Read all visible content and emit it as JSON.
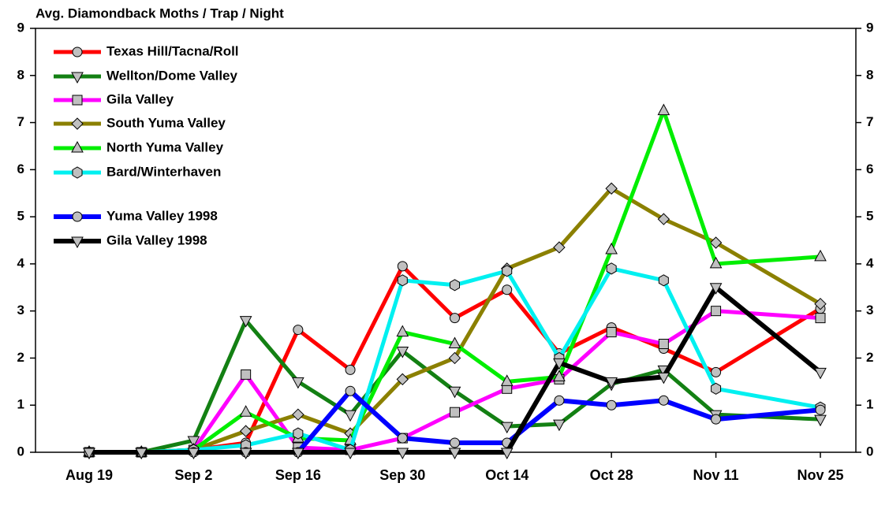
{
  "chart_data": {
    "type": "line",
    "title": "Avg. Diamondback Moths  / Trap / Night",
    "x": [
      0,
      7,
      14,
      21,
      28,
      35,
      42,
      49,
      56,
      63,
      70,
      77,
      84,
      98
    ],
    "xlim": [
      0,
      98
    ],
    "xticks": [
      {
        "value": 0,
        "label": "Aug 19"
      },
      {
        "value": 14,
        "label": "Sep 2"
      },
      {
        "value": 28,
        "label": "Sep 16"
      },
      {
        "value": 42,
        "label": "Sep 30"
      },
      {
        "value": 56,
        "label": "Oct 14"
      },
      {
        "value": 70,
        "label": "Oct 28"
      },
      {
        "value": 84,
        "label": "Nov 11"
      },
      {
        "value": 98,
        "label": "Nov 25"
      }
    ],
    "ylim": [
      0,
      9
    ],
    "yticks": [
      0,
      1,
      2,
      3,
      4,
      5,
      6,
      7,
      8,
      9
    ],
    "legend": "top-left",
    "series": [
      {
        "name": "Texas Hill/Tacna/Roll",
        "color": "#ff0000",
        "marker": "circle",
        "values": [
          0,
          0,
          0.05,
          0.2,
          2.6,
          1.75,
          3.95,
          2.85,
          3.45,
          2.1,
          2.65,
          2.2,
          1.7,
          3.05
        ]
      },
      {
        "name": "Wellton/Dome Valley",
        "color": "#138013",
        "marker": "triangle-down",
        "values": [
          0,
          0,
          0.25,
          2.8,
          1.5,
          0.8,
          2.15,
          1.3,
          0.55,
          0.6,
          1.45,
          1.75,
          0.8,
          0.7
        ]
      },
      {
        "name": "Gila Valley",
        "color": "#ff00ff",
        "marker": "square",
        "values": [
          0,
          0,
          0.05,
          1.65,
          0.1,
          0.05,
          0.3,
          0.85,
          1.35,
          1.55,
          2.55,
          2.3,
          3.0,
          2.85
        ]
      },
      {
        "name": "South Yuma Valley",
        "color": "#8b8000",
        "marker": "diamond",
        "values": [
          0,
          0,
          0.05,
          0.45,
          0.8,
          0.4,
          1.55,
          2.0,
          3.9,
          4.35,
          5.6,
          4.95,
          4.45,
          3.15
        ]
      },
      {
        "name": "North Yuma Valley",
        "color": "#00ee00",
        "marker": "triangle-up",
        "values": [
          0,
          0,
          0.05,
          0.85,
          0.3,
          0.25,
          2.55,
          2.3,
          1.5,
          1.6,
          4.3,
          7.25,
          4.0,
          4.15
        ]
      },
      {
        "name": "Bard/Winterhaven",
        "color": "#00f0f0",
        "marker": "hexagon",
        "values": [
          0,
          0,
          0.05,
          0.15,
          0.4,
          0.05,
          3.65,
          3.55,
          3.85,
          2.0,
          3.9,
          3.65,
          1.35,
          0.95
        ]
      },
      {
        "name": "Yuma Valley 1998",
        "color": "#0000ff",
        "marker": "circle",
        "values": [
          0,
          0,
          0,
          0,
          0,
          1.3,
          0.3,
          0.2,
          0.2,
          1.1,
          1.0,
          1.1,
          0.7,
          0.9
        ]
      },
      {
        "name": "Gila Valley 1998",
        "color": "#000000",
        "marker": "triangle-down",
        "values": [
          0,
          0,
          0,
          0,
          0,
          0,
          0,
          0,
          0,
          1.9,
          1.5,
          1.6,
          3.5,
          1.7
        ]
      }
    ]
  }
}
